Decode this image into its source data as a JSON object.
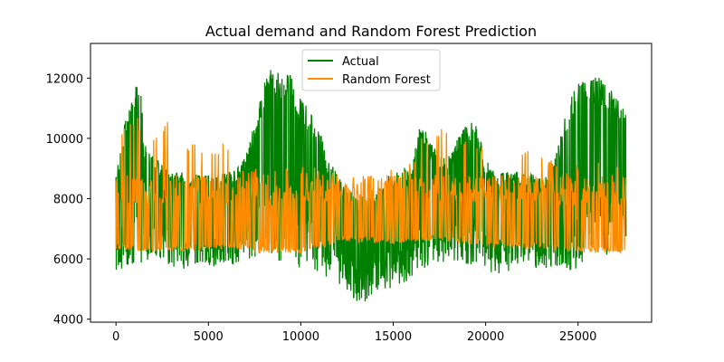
{
  "chart_data": {
    "type": "line",
    "title": "Actual demand and Random Forest Prediction",
    "xlabel": "",
    "ylabel": "",
    "xlim": [
      -1380,
      28980
    ],
    "ylim": [
      3900,
      13150
    ],
    "x_ticks": [
      0,
      5000,
      10000,
      15000,
      20000,
      25000
    ],
    "y_ticks": [
      4000,
      6000,
      8000,
      10000,
      12000
    ],
    "grid": false,
    "legend_position": "upper center",
    "series": [
      {
        "name": "Actual",
        "color": "#008000",
        "upper": {
          "x": [
            0,
            500,
            1000,
            1300,
            1500,
            2000,
            2500,
            3000,
            3500,
            4000,
            4500,
            5000,
            5500,
            6000,
            6500,
            7000,
            7500,
            8000,
            8500,
            9000,
            9500,
            10000,
            10500,
            11000,
            11500,
            12000,
            12500,
            13000,
            13500,
            14000,
            14500,
            15000,
            15500,
            16000,
            16500,
            17000,
            17500,
            18000,
            18500,
            19000,
            19500,
            20000,
            20500,
            21000,
            21500,
            22000,
            22500,
            23000,
            23500,
            24000,
            24500,
            25000,
            25500,
            26000,
            26500,
            27000,
            27500
          ],
          "y": [
            8800,
            10800,
            11800,
            12200,
            10000,
            9400,
            9200,
            9000,
            8900,
            8800,
            8800,
            8800,
            8800,
            8900,
            9000,
            9400,
            10500,
            11800,
            12500,
            12300,
            12100,
            11400,
            11000,
            10300,
            9300,
            8800,
            8300,
            8200,
            8000,
            8300,
            8600,
            8900,
            9000,
            9100,
            10600,
            9900,
            9500,
            9400,
            10000,
            10600,
            10500,
            9300,
            9000,
            8900,
            8900,
            8900,
            8800,
            8800,
            8800,
            10000,
            11300,
            11800,
            12000,
            12100,
            11900,
            11400,
            11000
          ]
        },
        "lower": {
          "x": [
            0,
            500,
            1000,
            1500,
            2000,
            2500,
            3000,
            3500,
            4000,
            4500,
            5000,
            5500,
            6000,
            6500,
            7000,
            7500,
            8000,
            8500,
            9000,
            9500,
            10000,
            10500,
            11000,
            11500,
            12000,
            12500,
            13000,
            13500,
            14000,
            14500,
            15000,
            15500,
            16000,
            16500,
            17000,
            17500,
            18000,
            18500,
            19000,
            19500,
            20000,
            20500,
            21000,
            21500,
            22000,
            22500,
            23000,
            23500,
            24000,
            24500,
            25000,
            25500,
            26000,
            26500,
            27000,
            27500
          ],
          "y": [
            5600,
            5600,
            5800,
            5900,
            6000,
            6000,
            5700,
            5600,
            5700,
            5700,
            5600,
            5700,
            5800,
            5800,
            6000,
            6000,
            6000,
            5900,
            5800,
            5800,
            5700,
            5600,
            5500,
            5300,
            5200,
            4900,
            4600,
            4400,
            4600,
            4900,
            5000,
            5200,
            5200,
            5500,
            5700,
            5800,
            5800,
            5900,
            5700,
            5800,
            5600,
            5500,
            5500,
            5700,
            5800,
            5800,
            5500,
            5600,
            5700,
            5600,
            5700,
            5900,
            6000,
            6100,
            6200,
            6300
          ]
        }
      },
      {
        "name": "Random Forest",
        "color": "#ff8c00",
        "upper": {
          "x": [
            0,
            300,
            800,
            1200,
            1800,
            2300,
            2800,
            3500,
            4200,
            4800,
            5500,
            6000,
            6500,
            7000,
            7400,
            8000,
            9000,
            10000,
            11000,
            11500,
            12000,
            13000,
            14000,
            15000,
            16000,
            16500,
            17500,
            18000,
            18500,
            19000,
            20000,
            20500,
            21500,
            22500,
            23000,
            23500,
            24000,
            25000,
            26000,
            27000,
            27500
          ],
          "y": [
            8700,
            10200,
            10800,
            10700,
            10000,
            10100,
            10700,
            9900,
            10000,
            9800,
            9800,
            10000,
            9700,
            8800,
            9100,
            9200,
            9100,
            9100,
            9100,
            9100,
            8700,
            8200,
            8900,
            9000,
            9200,
            10000,
            10300,
            10400,
            10000,
            9900,
            10000,
            9700,
            9900,
            9500,
            9400,
            9400,
            9000,
            9200,
            9200,
            9200,
            8900
          ]
        },
        "lower": {
          "x": [
            0,
            2000,
            5000,
            7000,
            7500,
            10000,
            11500,
            12000,
            15000,
            17000,
            20000,
            23000,
            24000,
            26000,
            27500
          ],
          "y": [
            6300,
            6200,
            6300,
            6300,
            6200,
            6200,
            6400,
            6600,
            6500,
            6600,
            6400,
            6300,
            6200,
            6200,
            6200
          ]
        }
      }
    ]
  }
}
